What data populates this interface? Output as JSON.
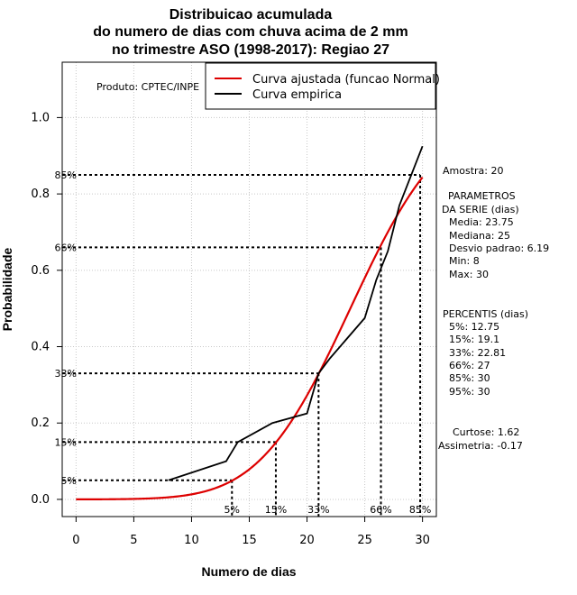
{
  "chart_data": {
    "type": "line",
    "title_lines": [
      "Distribuicao acumulada",
      "do numero de dias com chuva acima de 2 mm",
      "no trimestre ASO (1998-2017): Regiao 27"
    ],
    "xlabel": "Numero de dias",
    "ylabel": "Probabilidade",
    "xlim": [
      -1.2,
      31.2
    ],
    "ylim": [
      -0.045,
      1.145
    ],
    "x_ticks": [
      0,
      5,
      10,
      15,
      20,
      25,
      30
    ],
    "y_ticks": [
      0.0,
      0.2,
      0.4,
      0.6,
      0.8,
      1.0
    ],
    "y_tick_labels": [
      "0.0",
      "0.2",
      "0.4",
      "0.6",
      "0.8",
      "1.0"
    ],
    "grid": true,
    "producer": "Produto: CPTEC/INPE",
    "legend": {
      "placement": "top-right",
      "entries": [
        {
          "label": "Curva ajustada (funcao Normal)",
          "color": "#dd0000"
        },
        {
          "label": "Curva empirica",
          "color": "#000000"
        }
      ]
    },
    "series": [
      {
        "name": "Curva ajustada (funcao Normal)",
        "color": "#dd0000",
        "mean": 23.75,
        "sd": 6.19,
        "x_start": 0,
        "x_end": 30
      },
      {
        "name": "Curva empirica",
        "color": "#000000",
        "x": [
          8,
          13,
          14,
          17,
          20,
          21,
          22,
          25,
          26,
          27,
          28,
          30
        ],
        "y": [
          0.05,
          0.1,
          0.15,
          0.2,
          0.225,
          0.33,
          0.37,
          0.475,
          0.575,
          0.65,
          0.77,
          0.925
        ]
      }
    ],
    "percentile_lines": [
      {
        "label": "5%",
        "p": 0.05,
        "x": 13.5
      },
      {
        "label": "15%",
        "p": 0.15,
        "x": 17.3
      },
      {
        "label": "33%",
        "p": 0.33,
        "x": 21.0
      },
      {
        "label": "66%",
        "p": 0.66,
        "x": 26.4
      },
      {
        "label": "85%",
        "p": 0.85,
        "x": 29.8
      }
    ],
    "side_text": {
      "amostra": "Amostra: 20",
      "params_title_1": "PARAMETROS",
      "params_title_2": "DA SERIE (dias)",
      "params": [
        "Media: 23.75",
        "Mediana: 25",
        "Desvio padrao: 6.19",
        "Min: 8",
        "Max: 30"
      ],
      "percentis_title": "PERCENTIS (dias)",
      "percentis": [
        "5%: 12.75",
        "15%: 19.1",
        "33%: 22.81",
        "66%: 27",
        "85%: 30",
        "95%: 30"
      ],
      "curtose": "Curtose: 1.62",
      "assimetria": "Assimetria: -0.17"
    }
  }
}
